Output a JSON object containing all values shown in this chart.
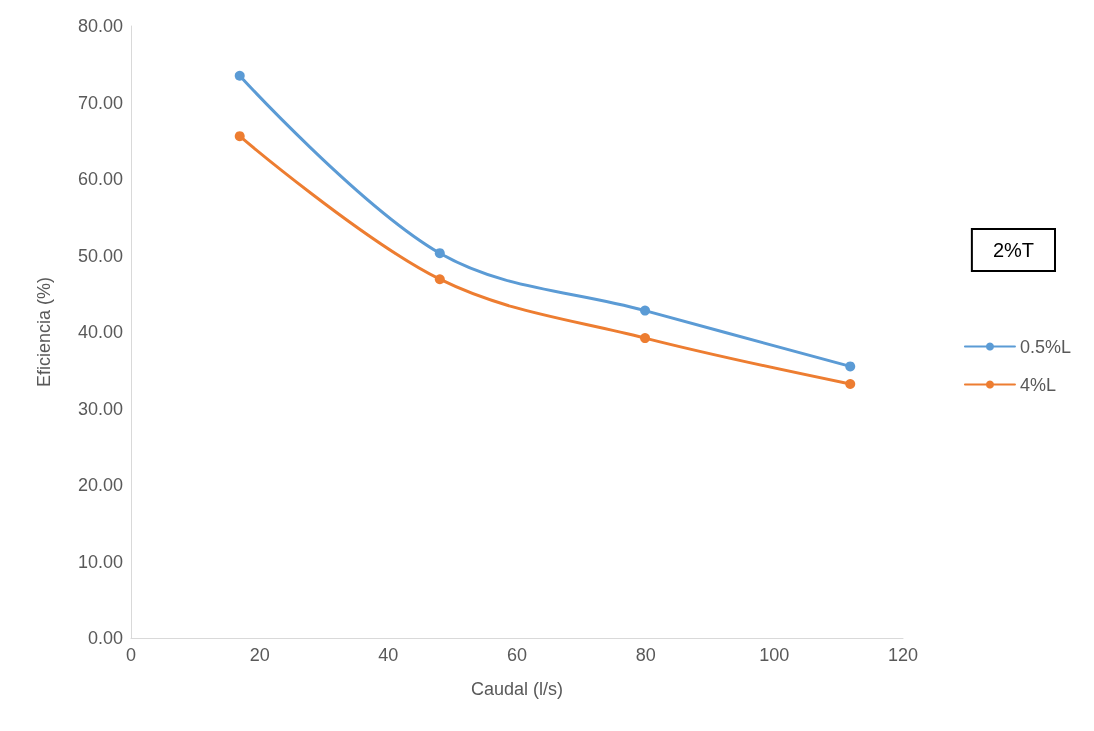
{
  "chart_data": {
    "type": "line",
    "xlabel": "Caudal (l/s)",
    "ylabel": "Eficiencia (%)",
    "annotations": [
      "2%T"
    ],
    "series": [
      {
        "name": "0.5%L",
        "color": "#5b9bd5",
        "x": [
          16.9,
          48.0,
          79.9,
          111.8
        ],
        "values": [
          73.5,
          50.3,
          42.8,
          35.5
        ]
      },
      {
        "name": "4%L",
        "color": "#ed7d31",
        "x": [
          16.9,
          48.0,
          79.9,
          111.8
        ],
        "values": [
          65.6,
          46.9,
          39.2,
          33.2
        ]
      }
    ],
    "xlim": [
      0,
      120
    ],
    "xticks": [
      0,
      20,
      40,
      60,
      80,
      100,
      120
    ],
    "ylim": [
      0,
      80
    ],
    "yticks": [
      {
        "value": 0,
        "label": "0.00"
      },
      {
        "value": 10,
        "label": "10.00"
      },
      {
        "value": 20,
        "label": "20.00"
      },
      {
        "value": 30,
        "label": "30.00"
      },
      {
        "value": 40,
        "label": "40.00"
      },
      {
        "value": 50,
        "label": "50.00"
      },
      {
        "value": 60,
        "label": "60.00"
      },
      {
        "value": 70,
        "label": "70.00"
      },
      {
        "value": 80,
        "label": "80.00"
      }
    ],
    "grid": false,
    "legend": "right",
    "marker": "circle",
    "line_style": "solid"
  }
}
